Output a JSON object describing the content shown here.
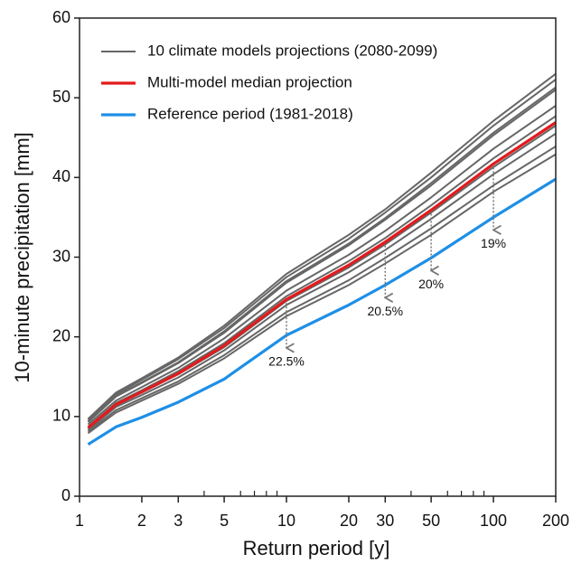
{
  "chart_data": {
    "type": "line",
    "x_label": "Return period [y]",
    "y_label": "10-minute precipitation [mm]",
    "xscale": "log",
    "xlim": [
      1,
      200
    ],
    "ylim": [
      0,
      60
    ],
    "xticks": [
      1,
      2,
      3,
      5,
      10,
      20,
      30,
      50,
      100,
      200
    ],
    "xminorticks": [
      4,
      6,
      7,
      8,
      9,
      40,
      60,
      70,
      80,
      90
    ],
    "yticks": [
      0,
      10,
      20,
      30,
      40,
      50,
      60
    ],
    "legend": "upper left",
    "x": [
      1.1,
      1.5,
      2,
      3,
      5,
      10,
      20,
      30,
      50,
      100,
      200
    ],
    "series": [
      {
        "name": "10 climate models projections (2080-2099)",
        "color": "#666666",
        "values": [
          9.7,
          13.0,
          14.8,
          17.4,
          21.4,
          27.9,
          32.8,
          36.0,
          40.6,
          47.1,
          53.0
        ]
      },
      {
        "color": "#666666",
        "values": [
          9.6,
          12.8,
          14.6,
          17.2,
          21.1,
          27.5,
          32.3,
          35.6,
          40.0,
          46.5,
          52.3
        ]
      },
      {
        "color": "#666666",
        "values": [
          9.4,
          12.6,
          14.3,
          16.8,
          20.7,
          27.0,
          31.7,
          34.9,
          39.3,
          45.6,
          51.3
        ]
      },
      {
        "color": "#666666",
        "values": [
          9.3,
          12.5,
          14.2,
          16.7,
          20.5,
          26.8,
          31.5,
          34.7,
          39.0,
          45.3,
          51.0
        ]
      },
      {
        "color": "#666666",
        "values": [
          9.0,
          12.0,
          13.7,
          16.1,
          19.8,
          25.8,
          30.3,
          33.3,
          37.5,
          43.6,
          49.0
        ]
      },
      {
        "color": "#666666",
        "values": [
          8.7,
          11.7,
          13.3,
          15.7,
          19.2,
          25.1,
          29.5,
          32.4,
          36.5,
          42.4,
          47.7
        ]
      },
      {
        "color": "#666666",
        "values": [
          8.5,
          11.4,
          13.0,
          15.3,
          18.7,
          24.5,
          28.7,
          31.6,
          35.6,
          41.3,
          46.5
        ]
      },
      {
        "color": "#666666",
        "values": [
          8.3,
          11.2,
          12.7,
          14.9,
          18.3,
          24.0,
          28.1,
          30.9,
          34.8,
          40.4,
          45.5
        ]
      },
      {
        "color": "#666666",
        "values": [
          8.1,
          10.8,
          12.3,
          14.4,
          17.7,
          23.1,
          27.1,
          29.9,
          33.6,
          39.0,
          43.9
        ]
      },
      {
        "color": "#666666",
        "values": [
          7.9,
          10.5,
          12.0,
          14.1,
          17.3,
          22.6,
          26.5,
          29.2,
          32.8,
          38.2,
          42.9
        ]
      },
      {
        "name": "Multi-model median projection",
        "color": "#e41a1c",
        "values": [
          8.6,
          11.5,
          13.1,
          15.4,
          18.9,
          24.7,
          29.0,
          31.9,
          35.9,
          41.7,
          46.9
        ]
      },
      {
        "name": "Reference period (1981-2018)",
        "color": "#1e8fe6",
        "values": [
          6.5,
          8.7,
          9.9,
          11.8,
          14.7,
          20.2,
          24.0,
          26.5,
          29.9,
          35.0,
          39.8
        ]
      }
    ],
    "annotations": [
      {
        "x": 10,
        "text": "22.5%"
      },
      {
        "x": 30,
        "text": "20.5%"
      },
      {
        "x": 50,
        "text": "20%"
      },
      {
        "x": 100,
        "text": "19%"
      }
    ]
  }
}
